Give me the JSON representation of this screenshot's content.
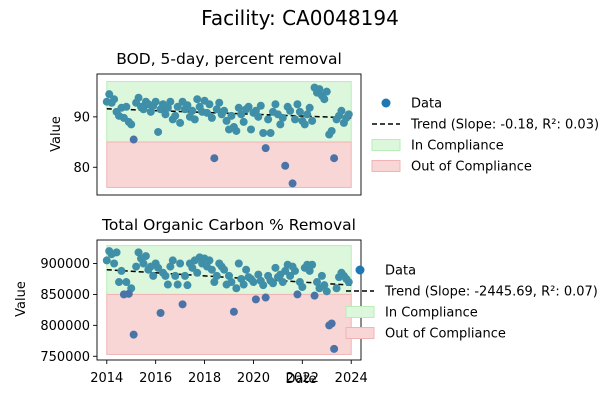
{
  "figure": {
    "title": "Facility: CA0048194"
  },
  "colors": {
    "points": "#3f8fa8",
    "points_outlier": "#4a74a8",
    "legend_marker": "#1f77b4",
    "trend": "#000000",
    "in_compliance": "#dcf7dc",
    "in_compliance_edge": "#b9ecb9",
    "out_of_compliance": "#f9d6d6",
    "out_of_compliance_edge": "#f1b4b4"
  },
  "chart_data": [
    {
      "type": "scatter",
      "title": "BOD, 5-day, percent removal",
      "ylabel": "Value",
      "xlabel": "",
      "xlim": [
        2013.6,
        2024.4
      ],
      "ylim": [
        74.5,
        98.5
      ],
      "yticks": [
        80,
        90
      ],
      "ytick_labels": [
        "80",
        "90"
      ],
      "xticks": [],
      "grid": false,
      "legend_placement": "right",
      "bands": [
        {
          "name": "In Compliance",
          "y0": 85,
          "y1": 97,
          "x0": 2014,
          "x1": 2024
        },
        {
          "name": "Out of Compliance",
          "y0": 76,
          "y1": 85,
          "x0": 2014,
          "x1": 2024
        }
      ],
      "trend": {
        "name": "Trend (Slope: -0.18, R²: 0.03)",
        "x": [
          2014,
          2024
        ],
        "y": [
          91.6,
          89.8
        ]
      },
      "legend": [
        "Data",
        "Trend (Slope: -0.18, R²: 0.03)",
        "In Compliance",
        "Out of Compliance"
      ],
      "outliers": [
        {
          "x": 2015.1,
          "y": 85.5
        },
        {
          "x": 2018.4,
          "y": 81.8
        },
        {
          "x": 2020.5,
          "y": 83.8
        },
        {
          "x": 2021.3,
          "y": 80.3
        },
        {
          "x": 2021.6,
          "y": 76.8
        },
        {
          "x": 2023.3,
          "y": 81.8
        }
      ],
      "series": [
        {
          "name": "Data",
          "x": [
            2014.0,
            2014.1,
            2014.2,
            2014.3,
            2014.4,
            2014.5,
            2014.6,
            2014.7,
            2014.8,
            2014.9,
            2015.0,
            2015.2,
            2015.3,
            2015.4,
            2015.5,
            2015.6,
            2015.7,
            2015.8,
            2015.9,
            2016.0,
            2016.1,
            2016.2,
            2016.3,
            2016.4,
            2016.5,
            2016.6,
            2016.7,
            2016.8,
            2016.9,
            2017.0,
            2017.1,
            2017.2,
            2017.3,
            2017.4,
            2017.5,
            2017.6,
            2017.7,
            2017.8,
            2017.9,
            2018.0,
            2018.1,
            2018.2,
            2018.3,
            2018.5,
            2018.6,
            2018.7,
            2018.8,
            2018.9,
            2019.0,
            2019.1,
            2019.2,
            2019.3,
            2019.4,
            2019.5,
            2019.6,
            2019.7,
            2019.8,
            2019.9,
            2020.0,
            2020.1,
            2020.2,
            2020.3,
            2020.4,
            2020.6,
            2020.7,
            2020.8,
            2020.9,
            2021.0,
            2021.1,
            2021.2,
            2021.4,
            2021.5,
            2021.7,
            2021.8,
            2021.9,
            2022.0,
            2022.1,
            2022.2,
            2022.3,
            2022.4,
            2022.5,
            2022.6,
            2022.7,
            2022.8,
            2022.9,
            2023.0,
            2023.1,
            2023.2,
            2023.4,
            2023.5,
            2023.6,
            2023.7,
            2023.8,
            2023.9
          ],
          "y": [
            93.0,
            94.5,
            92.8,
            93.5,
            91.0,
            90.2,
            91.8,
            89.8,
            92.0,
            89.0,
            88.5,
            92.8,
            93.8,
            92.0,
            91.5,
            93.0,
            92.5,
            91.0,
            92.2,
            93.0,
            87.0,
            91.5,
            92.5,
            90.5,
            91.8,
            93.0,
            89.5,
            90.2,
            92.0,
            88.8,
            93.0,
            91.5,
            92.3,
            90.0,
            91.2,
            89.5,
            93.5,
            92.0,
            91.0,
            93.2,
            90.8,
            92.5,
            89.8,
            91.5,
            92.8,
            90.5,
            91.2,
            89.2,
            87.5,
            90.2,
            88.0,
            87.2,
            91.8,
            90.5,
            89.0,
            91.5,
            92.0,
            87.5,
            90.8,
            91.2,
            90.0,
            92.2,
            86.8,
            89.5,
            86.8,
            91.0,
            92.5,
            90.5,
            88.5,
            89.8,
            92.0,
            91.2,
            89.5,
            92.5,
            91.0,
            89.2,
            88.5,
            90.5,
            91.8,
            89.2,
            95.8,
            94.8,
            95.5,
            94.2,
            93.5,
            95.0,
            86.5,
            87.2,
            89.5,
            90.2,
            91.2,
            88.8,
            89.8,
            90.5
          ]
        }
      ]
    },
    {
      "type": "scatter",
      "title": "Total Organic Carbon % Removal",
      "ylabel": "Value",
      "xlabel": "Date",
      "xlim": [
        2013.6,
        2024.4
      ],
      "ylim": [
        744000,
        938000
      ],
      "yticks": [
        750000,
        800000,
        850000,
        900000
      ],
      "ytick_labels": [
        "750000",
        "800000",
        "850000",
        "900000"
      ],
      "xticks": [
        2014,
        2016,
        2018,
        2020,
        2022,
        2024
      ],
      "xtick_labels": [
        "2014",
        "2016",
        "2018",
        "2020",
        "2022",
        "2024"
      ],
      "grid": false,
      "legend_placement": "right",
      "bands": [
        {
          "name": "In Compliance",
          "y0": 850000,
          "y1": 929000,
          "x0": 2014,
          "x1": 2024
        },
        {
          "name": "Out of Compliance",
          "y0": 753000,
          "y1": 850000,
          "x0": 2014,
          "x1": 2024
        }
      ],
      "trend": {
        "name": "Trend (Slope: -2445.69, R²: 0.07)",
        "x": [
          2014,
          2024
        ],
        "y": [
          890000,
          865000
        ]
      },
      "legend": [
        "Data",
        "Trend (Slope: -2445.69, R²: 0.07)",
        "In Compliance",
        "Out of Compliance"
      ],
      "outliers": [
        {
          "x": 2015.1,
          "y": 785000
        },
        {
          "x": 2016.2,
          "y": 820000
        },
        {
          "x": 2017.1,
          "y": 834000
        },
        {
          "x": 2019.2,
          "y": 822000
        },
        {
          "x": 2020.1,
          "y": 842000
        },
        {
          "x": 2020.5,
          "y": 845000
        },
        {
          "x": 2021.8,
          "y": 850000
        },
        {
          "x": 2022.5,
          "y": 848000
        },
        {
          "x": 2023.1,
          "y": 800000
        },
        {
          "x": 2023.2,
          "y": 803000
        },
        {
          "x": 2023.3,
          "y": 762000
        },
        {
          "x": 2014.7,
          "y": 850000
        },
        {
          "x": 2014.9,
          "y": 851000
        }
      ],
      "series": [
        {
          "name": "Data",
          "x": [
            2014.0,
            2014.1,
            2014.2,
            2014.3,
            2014.4,
            2014.5,
            2014.6,
            2014.8,
            2015.0,
            2015.2,
            2015.3,
            2015.4,
            2015.5,
            2015.6,
            2015.7,
            2015.8,
            2015.9,
            2016.0,
            2016.1,
            2016.3,
            2016.4,
            2016.5,
            2016.6,
            2016.7,
            2016.8,
            2016.9,
            2017.0,
            2017.2,
            2017.3,
            2017.4,
            2017.5,
            2017.6,
            2017.7,
            2017.8,
            2017.9,
            2018.0,
            2018.1,
            2018.2,
            2018.3,
            2018.4,
            2018.5,
            2018.6,
            2018.7,
            2018.8,
            2018.9,
            2019.0,
            2019.1,
            2019.3,
            2019.4,
            2019.5,
            2019.6,
            2019.7,
            2019.8,
            2019.9,
            2020.0,
            2020.2,
            2020.3,
            2020.4,
            2020.6,
            2020.7,
            2020.8,
            2020.9,
            2021.0,
            2021.1,
            2021.2,
            2021.3,
            2021.4,
            2021.5,
            2021.6,
            2021.7,
            2021.9,
            2022.0,
            2022.1,
            2022.2,
            2022.3,
            2022.4,
            2022.6,
            2022.7,
            2022.8,
            2022.9,
            2023.0,
            2023.4,
            2023.5,
            2023.6,
            2023.7,
            2023.8,
            2023.9
          ],
          "y": [
            905000,
            920000,
            915000,
            900000,
            918000,
            870000,
            888000,
            870000,
            860000,
            895000,
            918000,
            908000,
            900000,
            912000,
            890000,
            895000,
            880000,
            900000,
            893000,
            885000,
            880000,
            866000,
            895000,
            905000,
            880000,
            866000,
            900000,
            880000,
            865000,
            900000,
            893000,
            905000,
            885000,
            910000,
            900000,
            908000,
            895000,
            905000,
            890000,
            870000,
            880000,
            900000,
            895000,
            890000,
            866000,
            880000,
            870000,
            860000,
            900000,
            875000,
            866000,
            890000,
            878000,
            875000,
            870000,
            882000,
            872000,
            865000,
            880000,
            872000,
            868000,
            893000,
            878000,
            882000,
            870000,
            888000,
            898000,
            880000,
            895000,
            888000,
            870000,
            862000,
            893000,
            898000,
            888000,
            898000,
            870000,
            860000,
            880000,
            865000,
            855000,
            860000,
            878000,
            885000,
            880000,
            875000,
            870000
          ]
        }
      ]
    }
  ]
}
